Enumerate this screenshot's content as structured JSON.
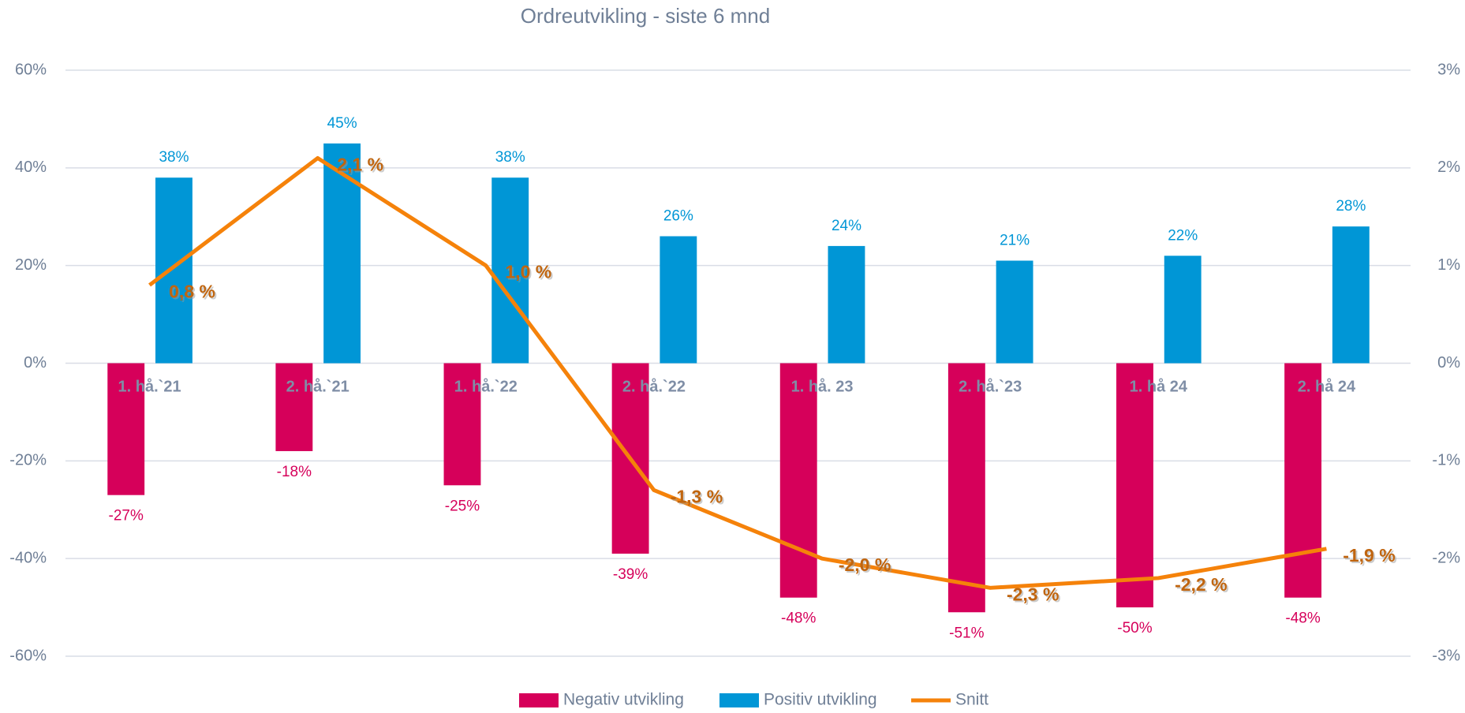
{
  "chart_data": {
    "type": "bar",
    "title": "Ordreutvikling - siste 6 mnd",
    "categories": [
      "1. hå.`21",
      "2. hå.`21",
      "1. hå.`22",
      "2. hå.`22",
      "1. hå. 23",
      "2. hå.`23",
      "1. hå 24",
      "2. hå 24"
    ],
    "series": [
      {
        "name": "Negativ utvikling",
        "type": "bar",
        "color": "#d6005a",
        "values": [
          -27,
          -18,
          -25,
          -39,
          -48,
          -51,
          -50,
          -48
        ],
        "value_labels": [
          "-27%",
          "-18%",
          "-25%",
          "-39%",
          "-48%",
          "-51%",
          "-50%",
          "-48%"
        ]
      },
      {
        "name": "Positiv utvikling",
        "type": "bar",
        "color": "#0096d6",
        "values": [
          38,
          45,
          38,
          26,
          24,
          21,
          22,
          28
        ],
        "value_labels": [
          "38%",
          "45%",
          "38%",
          "26%",
          "24%",
          "21%",
          "22%",
          "28%"
        ]
      },
      {
        "name": "Snitt",
        "type": "line",
        "axis": "y2",
        "color": "#f5820a",
        "values": [
          0.8,
          2.1,
          1.0,
          -1.3,
          -2.0,
          -2.3,
          -2.2,
          -1.9
        ],
        "value_labels": [
          "0,8 %",
          "2,1 %",
          "1,0 %",
          "-1,3 %",
          "-2,0 %",
          "-2,3 %",
          "-2,2 %",
          "-1,9 %"
        ]
      }
    ],
    "ylim": [
      -60,
      60
    ],
    "yticks": [
      {
        "value": -60,
        "label": "-60%"
      },
      {
        "value": -40,
        "label": "-40%"
      },
      {
        "value": -20,
        "label": "-20%"
      },
      {
        "value": 0,
        "label": "0%"
      },
      {
        "value": 20,
        "label": "20%"
      },
      {
        "value": 40,
        "label": "40%"
      },
      {
        "value": 60,
        "label": "60%"
      }
    ],
    "y2lim": [
      -3,
      3
    ],
    "y2ticks": [
      {
        "value": -3,
        "label": "-3%"
      },
      {
        "value": -2,
        "label": "-2%"
      },
      {
        "value": -1,
        "label": "-1%"
      },
      {
        "value": 0,
        "label": "0%"
      },
      {
        "value": 1,
        "label": "1%"
      },
      {
        "value": 2,
        "label": "2%"
      },
      {
        "value": 3,
        "label": "3%"
      }
    ],
    "grid": true,
    "legend": "bottom"
  }
}
